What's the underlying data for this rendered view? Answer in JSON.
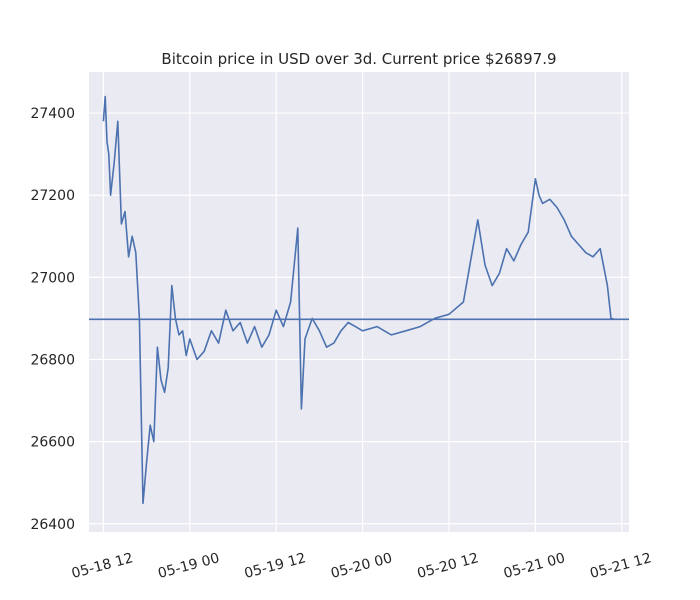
{
  "chart_data": {
    "type": "line",
    "title": "Bitcoin price in USD over 3d. Current price $26897.9",
    "xlabel": "",
    "ylabel": "",
    "x_ticks": [
      "05-18 12",
      "05-19 00",
      "05-19 12",
      "05-20 00",
      "05-20 12",
      "05-21 00",
      "05-21 12"
    ],
    "y_ticks": [
      26400,
      26600,
      26800,
      27000,
      27200,
      27400
    ],
    "ylim": [
      26380,
      27500
    ],
    "xlim": [
      "05-18 10:00",
      "05-21 13:00"
    ],
    "grid": true,
    "reference_line": {
      "value": 26897.9
    },
    "colors": {
      "line": "#4c72b0",
      "background": "#eaeaf2",
      "grid": "#ffffff"
    },
    "series": [
      {
        "x": [
          "05-18 12:00",
          "05-18 12:15",
          "05-18 12:30",
          "05-18 12:45",
          "05-18 13:00",
          "05-18 13:30",
          "05-18 14:00",
          "05-18 14:30",
          "05-18 15:00",
          "05-18 15:30",
          "05-18 16:00",
          "05-18 16:30",
          "05-18 17:00",
          "05-18 17:30",
          "05-18 18:00",
          "05-18 18:30",
          "05-18 19:00",
          "05-18 19:30",
          "05-18 20:00",
          "05-18 20:30",
          "05-18 21:00",
          "05-18 21:30",
          "05-18 22:00",
          "05-18 22:30",
          "05-18 23:00",
          "05-18 23:30",
          "05-19 00:00",
          "05-19 01:00",
          "05-19 02:00",
          "05-19 03:00",
          "05-19 04:00",
          "05-19 05:00",
          "05-19 06:00",
          "05-19 07:00",
          "05-19 08:00",
          "05-19 09:00",
          "05-19 10:00",
          "05-19 11:00",
          "05-19 12:00",
          "05-19 13:00",
          "05-19 14:00",
          "05-19 15:00",
          "05-19 15:30",
          "05-19 16:00",
          "05-19 17:00",
          "05-19 18:00",
          "05-19 19:00",
          "05-19 20:00",
          "05-19 21:00",
          "05-19 22:00",
          "05-19 23:00",
          "05-20 00:00",
          "05-20 02:00",
          "05-20 04:00",
          "05-20 06:00",
          "05-20 08:00",
          "05-20 10:00",
          "05-20 12:00",
          "05-20 14:00",
          "05-20 16:00",
          "05-20 17:00",
          "05-20 18:00",
          "05-20 19:00",
          "05-20 20:00",
          "05-20 21:00",
          "05-20 22:00",
          "05-20 23:00",
          "05-21 00:00",
          "05-21 00:30",
          "05-21 01:00",
          "05-21 02:00",
          "05-21 03:00",
          "05-21 04:00",
          "05-21 05:00",
          "05-21 06:00",
          "05-21 07:00",
          "05-21 08:00",
          "05-21 09:00",
          "05-21 10:00",
          "05-21 10:30",
          "05-21 11:00"
        ],
        "values": [
          27380,
          27440,
          27330,
          27300,
          27200,
          27280,
          27380,
          27130,
          27160,
          27050,
          27100,
          27060,
          26900,
          26450,
          26550,
          26640,
          26600,
          26830,
          26750,
          26720,
          26780,
          26980,
          26900,
          26860,
          26870,
          26810,
          26850,
          26800,
          26820,
          26870,
          26840,
          26920,
          26870,
          26890,
          26840,
          26880,
          26830,
          26860,
          26920,
          26880,
          26940,
          27120,
          26680,
          26850,
          26900,
          26870,
          26830,
          26840,
          26870,
          26890,
          26880,
          26870,
          26880,
          26860,
          26870,
          26880,
          26900,
          26910,
          26940,
          27140,
          27030,
          26980,
          27010,
          27070,
          27040,
          27080,
          27110,
          27240,
          27200,
          27180,
          27190,
          27170,
          27140,
          27100,
          27080,
          27060,
          27050,
          27070,
          26980,
          26900,
          26897.9
        ]
      }
    ]
  }
}
